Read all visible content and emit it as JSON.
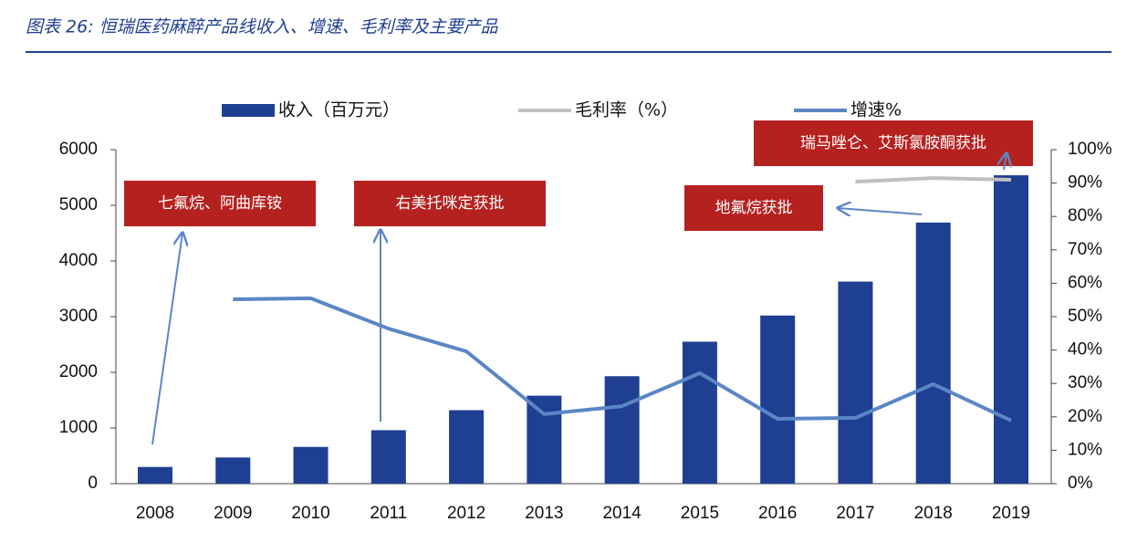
{
  "chart_data": {
    "type": "bar",
    "title": "图表 26: 恒瑞医药麻醉产品线收入、增速、毛利率及主要产品",
    "categories": [
      "2008",
      "2009",
      "2010",
      "2011",
      "2012",
      "2013",
      "2014",
      "2015",
      "2016",
      "2017",
      "2018",
      "2019"
    ],
    "series": [
      {
        "name": "收入（百万元）",
        "type": "bar",
        "axis": "y",
        "color": "#1f3f93",
        "values": [
          300,
          470,
          660,
          960,
          1320,
          1580,
          1930,
          2550,
          3020,
          3630,
          4690,
          5540
        ]
      },
      {
        "name": "毛利率（%）",
        "type": "line",
        "axis": "y2",
        "color": "#c0c0c0",
        "values": [
          null,
          null,
          null,
          null,
          null,
          null,
          null,
          null,
          null,
          90.4,
          91.5,
          91
        ]
      },
      {
        "name": "增速%",
        "type": "line",
        "axis": "y2",
        "color": "#5b86c5",
        "values": [
          null,
          55.2,
          55.5,
          46.4,
          39.6,
          20.8,
          23.2,
          33.1,
          19.4,
          19.7,
          29.8,
          18.9
        ]
      }
    ],
    "ylim": [
      0,
      6000
    ],
    "yticks": [
      0,
      1000,
      2000,
      3000,
      4000,
      5000,
      6000
    ],
    "y2lim": [
      0,
      100
    ],
    "y2ticks": [
      {
        "value": 0,
        "label": "0%"
      },
      {
        "value": 10,
        "label": "10%"
      },
      {
        "value": 20,
        "label": "20%"
      },
      {
        "value": 30,
        "label": "30%"
      },
      {
        "value": 40,
        "label": "40%"
      },
      {
        "value": 50,
        "label": "50%"
      },
      {
        "value": 60,
        "label": "60%"
      },
      {
        "value": 70,
        "label": "70%"
      },
      {
        "value": 80,
        "label": "80%"
      },
      {
        "value": 90,
        "label": "90%"
      },
      {
        "value": 100,
        "label": "100%"
      }
    ],
    "annotations": [
      "七氟烷、阿曲库铵",
      "右美托咪定获批",
      "地氟烷获批",
      "瑞马唑仑、艾斯氯胺酮获批"
    ]
  }
}
